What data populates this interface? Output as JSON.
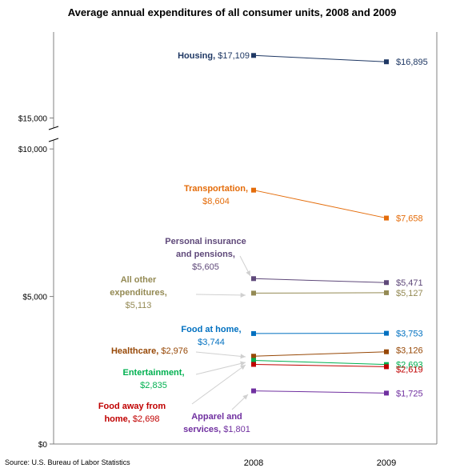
{
  "chart_data": {
    "type": "line",
    "title": "Average annual expenditures of all consumer units, 2008 and 2009",
    "source": "Source: U.S. Bureau of Labor Statistics",
    "x": [
      "2008",
      "2009"
    ],
    "y_ticks": [
      "$0",
      "$5,000",
      "$10,000",
      "$15,000"
    ],
    "y_tick_values": [
      0,
      5000,
      10000,
      15000
    ],
    "axis_break": "between $10,000 and $15,000",
    "series": [
      {
        "name": "Housing",
        "color": "#1f3864",
        "values": [
          17109,
          16895
        ],
        "labels": [
          "$17,109",
          "$16,895"
        ],
        "label_lines": [
          [
            "Housing,",
            "$17,109"
          ]
        ]
      },
      {
        "name": "Transportation",
        "color": "#e46c0a",
        "values": [
          8604,
          7658
        ],
        "labels": [
          "$8,604",
          "$7,658"
        ],
        "label_lines": [
          [
            "Transportation,"
          ],
          [
            "$8,604"
          ]
        ]
      },
      {
        "name": "Personal insurance and pensions",
        "color": "#5f497a",
        "values": [
          5605,
          5471
        ],
        "labels": [
          "$5,605",
          "$5,471"
        ],
        "label_lines": [
          [
            "Personal insurance"
          ],
          [
            "and pensions,"
          ],
          [
            "$5,605"
          ]
        ]
      },
      {
        "name": "All other expenditures",
        "color": "#948a54",
        "values": [
          5113,
          5127
        ],
        "labels": [
          "$5,113",
          "$5,127"
        ],
        "label_lines": [
          [
            "All other"
          ],
          [
            "expenditures,"
          ],
          [
            "$5,113"
          ]
        ]
      },
      {
        "name": "Food at home",
        "color": "#0070c0",
        "values": [
          3744,
          3753
        ],
        "labels": [
          "$3,744",
          "$3,753"
        ],
        "label_lines": [
          [
            "Food at home,"
          ],
          [
            "$3,744"
          ]
        ]
      },
      {
        "name": "Healthcare",
        "color": "#974806",
        "values": [
          2976,
          3126
        ],
        "labels": [
          "$2,976",
          "$3,126"
        ],
        "label_lines": [
          [
            "Healthcare,",
            "$2,976"
          ]
        ]
      },
      {
        "name": "Entertainment",
        "color": "#00b050",
        "values": [
          2835,
          2693
        ],
        "labels": [
          "$2,835",
          "$2,693"
        ],
        "label_lines": [
          [
            "Entertainment,"
          ],
          [
            "$2,835"
          ]
        ]
      },
      {
        "name": "Food away from home",
        "color": "#c00000",
        "values": [
          2698,
          2619
        ],
        "labels": [
          "$2,698",
          "$2,619"
        ],
        "label_lines": [
          [
            "Food away from"
          ],
          [
            "home,",
            "$2,698"
          ]
        ]
      },
      {
        "name": "Apparel and services",
        "color": "#7030a0",
        "values": [
          1801,
          1725
        ],
        "labels": [
          "$1,801",
          "$1,725"
        ],
        "label_lines": [
          [
            "Apparel and"
          ],
          [
            "services,",
            "$1,801"
          ]
        ]
      }
    ]
  }
}
